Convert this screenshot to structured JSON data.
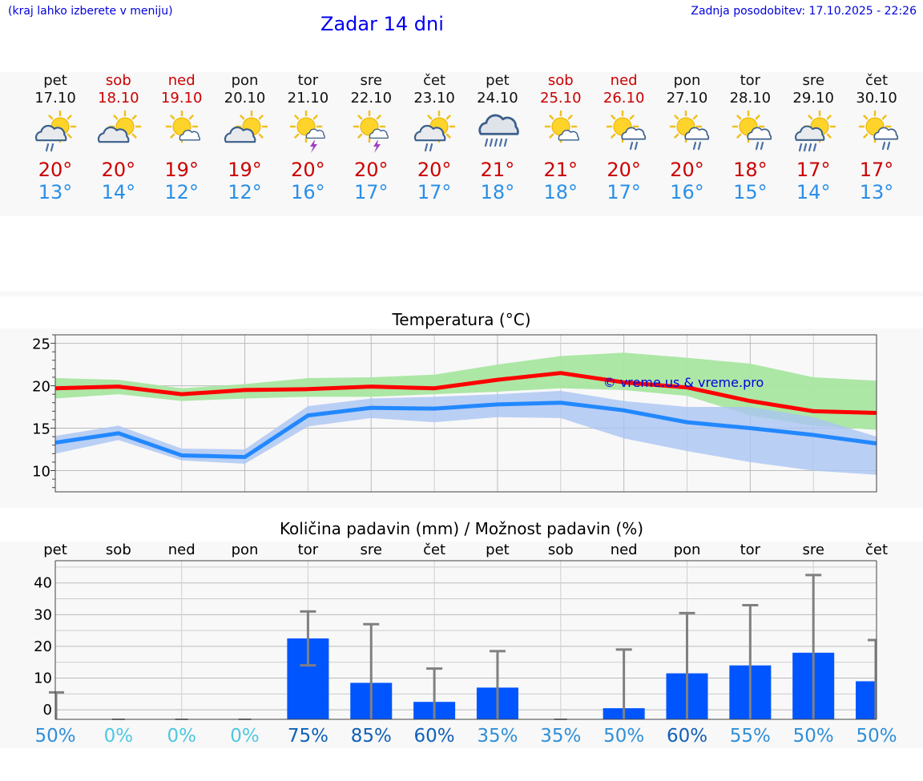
{
  "header": {
    "note_left": "(kraj lahko izberete v meniju)",
    "title": "Zadar 14 dni",
    "note_right": "Zadnja posodobitev: 17.10.2025 - 22:26"
  },
  "days": [
    {
      "name": "pet",
      "date": "17.10",
      "weekend": false,
      "icon": "sun-cloud-rain-icon",
      "max": "20°",
      "min": "13°"
    },
    {
      "name": "sob",
      "date": "18.10",
      "weekend": true,
      "icon": "sun-cloud-icon",
      "max": "20°",
      "min": "14°"
    },
    {
      "name": "ned",
      "date": "19.10",
      "weekend": true,
      "icon": "sun-small-cloud-icon",
      "max": "19°",
      "min": "12°"
    },
    {
      "name": "pon",
      "date": "20.10",
      "weekend": false,
      "icon": "sun-cloud-icon",
      "max": "19°",
      "min": "12°"
    },
    {
      "name": "tor",
      "date": "21.10",
      "weekend": false,
      "icon": "sun-thunder-icon",
      "max": "20°",
      "min": "16°"
    },
    {
      "name": "sre",
      "date": "22.10",
      "weekend": false,
      "icon": "sun-thunder-icon",
      "max": "20°",
      "min": "17°"
    },
    {
      "name": "čet",
      "date": "23.10",
      "weekend": false,
      "icon": "sun-cloud-rain-icon",
      "max": "20°",
      "min": "17°"
    },
    {
      "name": "pet",
      "date": "24.10",
      "weekend": false,
      "icon": "cloud-heavy-rain-icon",
      "max": "21°",
      "min": "18°"
    },
    {
      "name": "sob",
      "date": "25.10",
      "weekend": true,
      "icon": "sun-small-cloud-icon",
      "max": "21°",
      "min": "18°"
    },
    {
      "name": "ned",
      "date": "26.10",
      "weekend": true,
      "icon": "sun-cloud-light-rain-icon",
      "max": "20°",
      "min": "17°"
    },
    {
      "name": "pon",
      "date": "27.10",
      "weekend": false,
      "icon": "sun-cloud-light-rain-icon",
      "max": "20°",
      "min": "16°"
    },
    {
      "name": "tor",
      "date": "28.10",
      "weekend": false,
      "icon": "sun-cloud-light-rain-icon",
      "max": "18°",
      "min": "15°"
    },
    {
      "name": "sre",
      "date": "29.10",
      "weekend": false,
      "icon": "sun-cloud-heavy-rain-icon",
      "max": "17°",
      "min": "14°"
    },
    {
      "name": "čet",
      "date": "30.10",
      "weekend": false,
      "icon": "sun-cloud-light-rain-icon",
      "max": "17°",
      "min": "13°"
    }
  ],
  "colors": {
    "max_temp": "#cc0000",
    "min_temp": "#2a8fe8",
    "weekend": "#cc0000",
    "max_line": "#ff0000",
    "max_band": "#a8e6a0",
    "min_line": "#2288ff",
    "min_band": "#aac4f2",
    "band_overlap": "#78c8a0",
    "bar": "#0055ff",
    "whisker": "#808080"
  },
  "chart_data": [
    {
      "type": "line",
      "title": "Temperatura (°C)",
      "watermark": "© vreme.us & vreme.pro",
      "categories": [
        "17.10",
        "18.10",
        "19.10",
        "20.10",
        "21.10",
        "22.10",
        "23.10",
        "24.10",
        "25.10",
        "26.10",
        "27.10",
        "28.10",
        "29.10",
        "30.10"
      ],
      "ylim": [
        7.5,
        26
      ],
      "yticks": [
        10,
        15,
        20,
        25
      ],
      "grid": true,
      "series": [
        {
          "role": "max",
          "values": [
            19.7,
            19.9,
            19.0,
            19.5,
            19.6,
            19.9,
            19.7,
            20.7,
            21.5,
            20.4,
            19.8,
            18.2,
            17.0,
            16.8
          ],
          "band_low": [
            18.5,
            19.0,
            18.2,
            18.5,
            18.7,
            18.7,
            19.0,
            19.3,
            19.7,
            19.5,
            18.8,
            16.5,
            15.3,
            14.8
          ],
          "band_high": [
            20.9,
            20.7,
            19.7,
            20.2,
            20.9,
            21.0,
            21.3,
            22.5,
            23.5,
            23.9,
            23.3,
            22.6,
            21.0,
            20.6
          ]
        },
        {
          "role": "min",
          "values": [
            13.3,
            14.4,
            11.8,
            11.6,
            16.5,
            17.4,
            17.3,
            17.8,
            18.0,
            17.1,
            15.7,
            15.0,
            14.2,
            13.2
          ],
          "band_low": [
            12.0,
            13.6,
            11.2,
            10.8,
            15.2,
            16.2,
            15.7,
            16.3,
            16.2,
            13.8,
            12.3,
            11.0,
            10.0,
            9.5
          ],
          "band_high": [
            14.1,
            15.3,
            12.6,
            12.5,
            17.6,
            18.5,
            18.7,
            19.0,
            19.4,
            18.2,
            17.5,
            17.5,
            16.3,
            14.0
          ]
        }
      ]
    },
    {
      "type": "bar",
      "title": "Količina padavin (mm) / Možnost padavin (%)",
      "categories": [
        "pet",
        "sob",
        "ned",
        "pon",
        "tor",
        "sre",
        "čet",
        "pet",
        "sob",
        "ned",
        "pon",
        "tor",
        "sre",
        "čet"
      ],
      "ylim": [
        -3,
        47
      ],
      "yticks": [
        0,
        10,
        20,
        30,
        40
      ],
      "values": [
        0,
        0,
        0,
        0,
        22.5,
        8.5,
        2.5,
        7.0,
        0,
        0.5,
        11.5,
        14.0,
        18.0,
        9.0
      ],
      "upper": [
        5.5,
        0,
        0,
        0,
        31,
        27,
        13,
        18.5,
        0,
        19,
        30.5,
        33,
        42.5,
        22
      ],
      "lower": [
        null,
        null,
        null,
        null,
        14,
        null,
        null,
        null,
        null,
        null,
        null,
        null,
        null,
        null
      ],
      "probability": [
        "50%",
        "0%",
        "0%",
        "0%",
        "75%",
        "85%",
        "60%",
        "35%",
        "35%",
        "50%",
        "60%",
        "55%",
        "50%",
        "50%"
      ],
      "probability_values": [
        50,
        0,
        0,
        0,
        75,
        85,
        60,
        35,
        35,
        50,
        60,
        55,
        50,
        50
      ]
    }
  ]
}
